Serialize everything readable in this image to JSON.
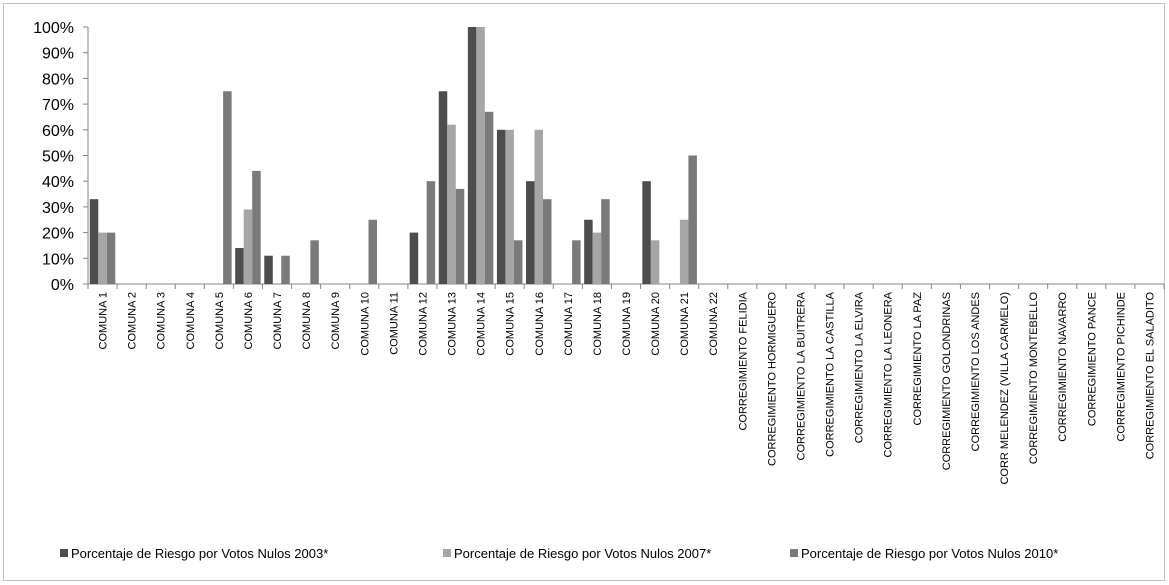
{
  "chart_data": {
    "type": "bar",
    "categories": [
      "COMUNA 1",
      "COMUNA 2",
      "COMUNA 3",
      "COMUNA 4",
      "COMUNA 5",
      "COMUNA 6",
      "COMUNA 7",
      "COMUNA 8",
      "COMUNA 9",
      "COMUNA 10",
      "COMUNA 11",
      "COMUNA 12",
      "COMUNA 13",
      "COMUNA 14",
      "COMUNA 15",
      "COMUNA 16",
      "COMUNA 17",
      "COMUNA 18",
      "COMUNA 19",
      "COMUNA 20",
      "COMUNA 21",
      "COMUNA 22",
      "CORREGIMIENTO FELIDIA",
      "CORREGIMIENTO HORMIGUERO",
      "CORREGIMIENTO LA BUITRERA",
      "CORREGIMIENTO LA CASTILLA",
      "CORREGIMIENTO LA ELVIRA",
      "CORREGIMIENTO LA LEONERA",
      "CORREGIMIENTO LA PAZ",
      "CORREGIMIENTO GOLONDRINAS",
      "CORREGIMIENTO LOS ANDES",
      "CORR MELENDEZ (VILLA CARMELO)",
      "CORREGIMIENTO MONTEBELLO",
      "CORREGIMIENTO NAVARRO",
      "CORREGIMIENTO PANCE",
      "CORREGIMIENTO PICHINDE",
      "CORREGIMIENTO EL SALADITO"
    ],
    "series": [
      {
        "name": "Porcentaje de Riesgo por Votos Nulos 2003*",
        "color": "#4d4d4d",
        "values": [
          33,
          0,
          0,
          0,
          0,
          14,
          11,
          0,
          0,
          0,
          0,
          20,
          75,
          100,
          60,
          40,
          0,
          25,
          0,
          40,
          0,
          0,
          0,
          0,
          0,
          0,
          0,
          0,
          0,
          0,
          0,
          0,
          0,
          0,
          0,
          0,
          0
        ]
      },
      {
        "name": "Porcentaje de Riesgo por Votos Nulos 2007*",
        "color": "#a6a6a6",
        "values": [
          20,
          0,
          0,
          0,
          0,
          29,
          0,
          0,
          0,
          0,
          0,
          0,
          62,
          100,
          60,
          60,
          0,
          20,
          0,
          17,
          25,
          0,
          0,
          0,
          0,
          0,
          0,
          0,
          0,
          0,
          0,
          0,
          0,
          0,
          0,
          0,
          0
        ]
      },
      {
        "name": "Porcentaje de Riesgo por Votos Nulos 2010*",
        "color": "#7a7a7a",
        "values": [
          20,
          0,
          0,
          0,
          75,
          44,
          11,
          17,
          0,
          25,
          0,
          40,
          37,
          67,
          17,
          33,
          17,
          33,
          0,
          0,
          50,
          0,
          0,
          0,
          0,
          0,
          0,
          0,
          0,
          0,
          0,
          0,
          0,
          0,
          0,
          0,
          0
        ]
      }
    ],
    "yticks": [
      "0%",
      "10%",
      "20%",
      "30%",
      "40%",
      "50%",
      "60%",
      "70%",
      "80%",
      "90%",
      "100%"
    ],
    "ylim": [
      0,
      100
    ],
    "grid": false,
    "legend_position": "bottom",
    "title": "",
    "xlabel": "",
    "ylabel": ""
  }
}
